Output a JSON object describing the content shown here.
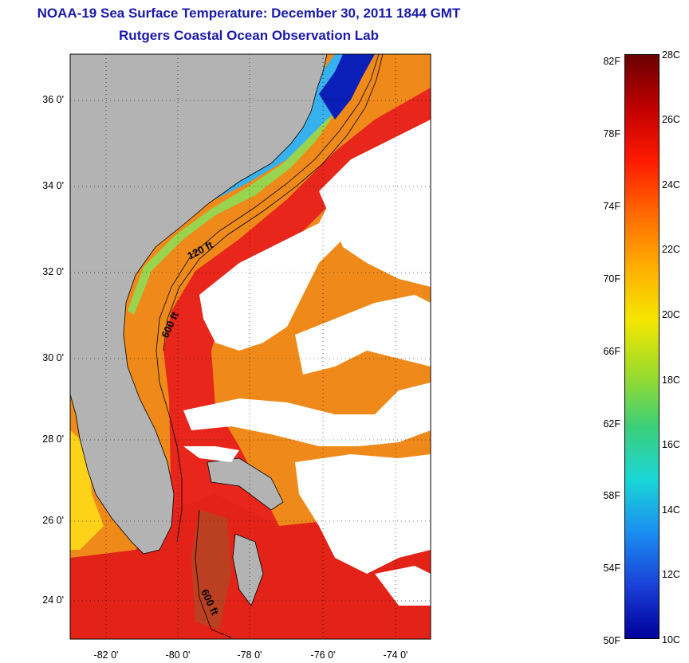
{
  "title": {
    "line1": "NOAA-19 Sea Surface Temperature:  December 30, 2011 1844 GMT",
    "line2": "Rutgers Coastal Ocean Observation Lab"
  },
  "map": {
    "lat_ticks": [
      "36 0'",
      "34 0'",
      "32 0'",
      "30 0'",
      "28 0'",
      "26 0'",
      "24 0'"
    ],
    "lon_ticks": [
      "-82 0'",
      "-80 0'",
      "-78 0'",
      "-76 0'",
      "-74 0'"
    ],
    "contour_labels": [
      "120 ft",
      "600 ft",
      "600 ft"
    ],
    "colors": {
      "land": "#b3b3b3",
      "cloud": "#ffffff",
      "warm_ocean": "#e8261b",
      "mid_ocean": "#f07d12",
      "shelf_cool": "#3aaef0",
      "shelf_cold": "#0a1fb8"
    }
  },
  "colorbar": {
    "fahrenheit": [
      "82F",
      "78F",
      "74F",
      "70F",
      "66F",
      "62F",
      "58F",
      "54F",
      "50F"
    ],
    "celsius": [
      "28C",
      "26C",
      "24C",
      "22C",
      "20C",
      "18C",
      "16C",
      "14C",
      "12C",
      "10C"
    ],
    "gradient": [
      "#6a0000",
      "#c00000",
      "#ff1a00",
      "#ff6a00",
      "#ffae00",
      "#f5e600",
      "#9edc2a",
      "#3ccf78",
      "#1ad6d6",
      "#1a8ef0",
      "#1a40d8",
      "#00009a"
    ]
  }
}
